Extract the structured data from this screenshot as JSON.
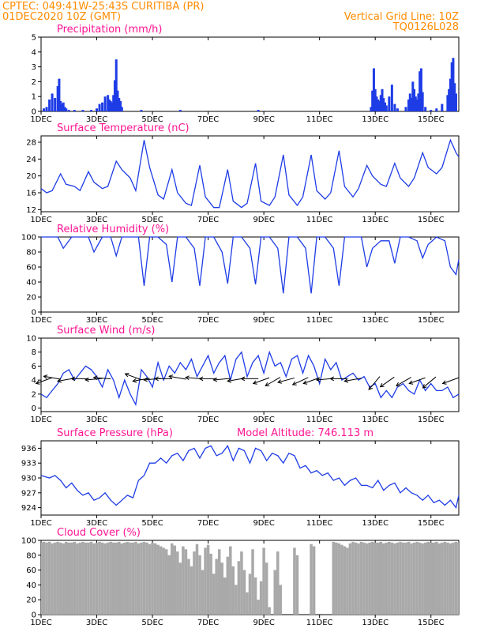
{
  "header": {
    "line1": "CPTEC:   049:41W-25:43S   CURITIBA (PR)",
    "line2": "01DEC2020 10Z (GMT)",
    "grid_note": "Vertical Grid Line: 10Z",
    "model_code": "TQ0126L028"
  },
  "x_ticks": [
    "1DEC",
    "3DEC",
    "5DEC",
    "7DEC",
    "9DEC",
    "11DEC",
    "13DEC",
    "15DEC"
  ],
  "colors": {
    "header": "#ff8c00",
    "panel_title": "#ff1493",
    "series": "#1e3ce6",
    "cloud": "#a9a9a9"
  },
  "chart_data": [
    {
      "type": "bar",
      "title": "Precipitation (mm/h)",
      "ylim": [
        0,
        5
      ],
      "yticks": [
        "0",
        "1",
        "2",
        "3",
        "4",
        "5"
      ],
      "x_days": [
        1.1,
        1.2,
        1.3,
        1.4,
        1.5,
        1.6,
        1.65,
        1.7,
        1.75,
        1.8,
        1.85,
        1.9,
        2.0,
        2.2,
        2.5,
        2.8,
        3.0,
        3.1,
        3.2,
        3.3,
        3.4,
        3.45,
        3.5,
        3.55,
        3.6,
        3.65,
        3.7,
        3.75,
        3.8,
        3.85,
        3.9,
        4.6,
        6.0,
        8.8,
        12.85,
        12.9,
        12.95,
        13.0,
        13.05,
        13.1,
        13.15,
        13.2,
        13.25,
        13.3,
        13.35,
        13.4,
        13.5,
        13.6,
        13.7,
        13.8,
        14.1,
        14.2,
        14.25,
        14.3,
        14.35,
        14.4,
        14.45,
        14.5,
        14.55,
        14.6,
        14.65,
        14.7,
        14.8,
        15.0,
        15.2,
        15.4,
        15.6,
        15.65,
        15.7,
        15.75,
        15.8,
        15.85,
        15.9
      ],
      "values": [
        0.2,
        0.3,
        0.8,
        1.2,
        0.9,
        1.7,
        2.2,
        0.7,
        0.5,
        0.6,
        0.3,
        0.2,
        0.1,
        0.1,
        0.1,
        0.1,
        0.2,
        0.5,
        0.6,
        1.0,
        1.1,
        0.8,
        0.7,
        0.6,
        1.1,
        2.1,
        3.5,
        1.4,
        0.9,
        0.7,
        0.3,
        0.1,
        0.1,
        0.1,
        0.3,
        1.4,
        2.9,
        1.5,
        1.0,
        0.8,
        0.7,
        1.1,
        1.5,
        0.9,
        0.6,
        0.4,
        1.0,
        1.8,
        0.5,
        0.2,
        0.3,
        0.8,
        1.2,
        0.9,
        2.0,
        1.5,
        1.0,
        0.8,
        1.2,
        2.7,
        2.9,
        1.3,
        0.3,
        0.1,
        0.2,
        0.5,
        1.1,
        1.5,
        2.2,
        3.3,
        3.6,
        1.9,
        1.2
      ]
    },
    {
      "type": "line",
      "title": "Surface Temperature (nC)",
      "ylim": [
        11.5,
        29.5
      ],
      "yticks": [
        "12",
        "16",
        "20",
        "24",
        "28"
      ],
      "x_days": [
        1.0,
        1.2,
        1.4,
        1.7,
        1.9,
        2.2,
        2.4,
        2.7,
        2.9,
        3.2,
        3.4,
        3.7,
        3.9,
        4.2,
        4.4,
        4.7,
        4.9,
        5.2,
        5.4,
        5.7,
        5.9,
        6.2,
        6.4,
        6.7,
        6.9,
        7.2,
        7.4,
        7.7,
        7.9,
        8.2,
        8.4,
        8.7,
        8.9,
        9.2,
        9.4,
        9.7,
        9.9,
        10.2,
        10.4,
        10.7,
        10.9,
        11.2,
        11.4,
        11.7,
        11.9,
        12.2,
        12.4,
        12.7,
        12.9,
        13.2,
        13.4,
        13.7,
        13.9,
        14.2,
        14.4,
        14.7,
        14.9,
        15.2,
        15.4,
        15.7,
        15.9,
        16.0
      ],
      "values": [
        17.0,
        16.0,
        16.5,
        20.5,
        18.0,
        17.5,
        16.5,
        21.0,
        18.5,
        17.0,
        17.5,
        23.5,
        21.5,
        19.5,
        16.5,
        28.5,
        22.0,
        15.5,
        14.5,
        21.5,
        16.0,
        13.5,
        13.0,
        22.5,
        15.0,
        12.5,
        12.5,
        21.5,
        14.0,
        12.5,
        13.5,
        23.0,
        14.0,
        13.0,
        15.0,
        25.0,
        15.5,
        13.0,
        15.0,
        25.0,
        16.5,
        14.5,
        16.0,
        26.0,
        17.5,
        15.0,
        17.0,
        22.5,
        20.0,
        18.0,
        17.5,
        23.0,
        19.5,
        17.5,
        19.5,
        25.5,
        22.0,
        20.5,
        22.0,
        28.5,
        25.5,
        24.5
      ]
    },
    {
      "type": "line",
      "title": "Relative Humidity (%)",
      "ylim": [
        0,
        100
      ],
      "yticks": [
        "0",
        "20",
        "40",
        "60",
        "80",
        "100"
      ],
      "x_days": [
        1.0,
        1.3,
        1.6,
        1.8,
        2.1,
        2.4,
        2.7,
        2.9,
        3.2,
        3.5,
        3.7,
        3.9,
        4.2,
        4.5,
        4.7,
        4.9,
        5.2,
        5.5,
        5.7,
        5.9,
        6.2,
        6.5,
        6.7,
        6.9,
        7.2,
        7.5,
        7.7,
        7.9,
        8.2,
        8.5,
        8.7,
        8.9,
        9.2,
        9.5,
        9.7,
        9.9,
        10.2,
        10.5,
        10.7,
        10.9,
        11.2,
        11.5,
        11.7,
        11.9,
        12.2,
        12.5,
        12.7,
        12.9,
        13.2,
        13.5,
        13.7,
        13.9,
        14.2,
        14.5,
        14.7,
        14.9,
        15.2,
        15.5,
        15.7,
        15.9,
        16.0
      ],
      "values": [
        100,
        100,
        100,
        85,
        100,
        100,
        100,
        80,
        100,
        100,
        75,
        100,
        100,
        100,
        35,
        100,
        100,
        90,
        40,
        100,
        100,
        85,
        35,
        100,
        100,
        80,
        38,
        100,
        100,
        85,
        37,
        100,
        100,
        85,
        25,
        100,
        100,
        85,
        25,
        100,
        100,
        85,
        35,
        100,
        100,
        100,
        60,
        85,
        95,
        95,
        65,
        100,
        100,
        95,
        72,
        90,
        100,
        95,
        60,
        50,
        70
      ]
    },
    {
      "type": "line",
      "title": "Surface Wind (m/s)",
      "ylim": [
        -0.5,
        10
      ],
      "yticks": [
        "0",
        "2",
        "4",
        "6",
        "8",
        "10"
      ],
      "x_days": [
        1.0,
        1.2,
        1.4,
        1.6,
        1.8,
        2.0,
        2.2,
        2.4,
        2.6,
        2.8,
        3.0,
        3.2,
        3.4,
        3.6,
        3.8,
        4.0,
        4.2,
        4.4,
        4.6,
        4.8,
        5.0,
        5.2,
        5.4,
        5.6,
        5.8,
        6.0,
        6.2,
        6.4,
        6.6,
        6.8,
        7.0,
        7.2,
        7.4,
        7.6,
        7.8,
        8.0,
        8.2,
        8.4,
        8.6,
        8.8,
        9.0,
        9.2,
        9.4,
        9.6,
        9.8,
        10.0,
        10.2,
        10.4,
        10.6,
        10.8,
        11.0,
        11.2,
        11.4,
        11.6,
        11.8,
        12.0,
        12.2,
        12.4,
        12.6,
        12.8,
        13.0,
        13.2,
        13.4,
        13.6,
        13.8,
        14.0,
        14.2,
        14.4,
        14.6,
        14.8,
        15.0,
        15.2,
        15.4,
        15.6,
        15.8,
        16.0
      ],
      "values": [
        2.0,
        1.5,
        2.5,
        3.5,
        5.0,
        5.5,
        4.0,
        5.0,
        6.0,
        5.5,
        4.5,
        3.0,
        5.5,
        4.0,
        1.5,
        4.0,
        2.0,
        0.5,
        5.5,
        4.5,
        3.0,
        6.5,
        4.0,
        6.0,
        5.0,
        6.5,
        5.5,
        7.0,
        4.5,
        6.0,
        7.5,
        5.0,
        6.5,
        7.5,
        4.0,
        7.0,
        8.0,
        4.5,
        6.5,
        7.5,
        5.0,
        8.0,
        6.0,
        6.5,
        4.5,
        7.0,
        7.5,
        5.0,
        7.5,
        6.0,
        3.5,
        7.0,
        5.5,
        6.5,
        4.0,
        4.5,
        5.0,
        4.0,
        4.5,
        3.0,
        3.5,
        1.5,
        2.5,
        1.5,
        3.0,
        3.5,
        2.5,
        2.0,
        4.0,
        2.5,
        3.5,
        2.5,
        2.5,
        3.0,
        1.5,
        2.0
      ],
      "wind_arrow_days": [
        1.3,
        1.6,
        2.1,
        2.6,
        3.1,
        3.4,
        4.5,
        4.8,
        5.2,
        5.6,
        6.1,
        6.7,
        7.2,
        7.7,
        8.2,
        8.7,
        9.1,
        9.5,
        10.0,
        10.5,
        10.9,
        11.4,
        11.9,
        12.4,
        13.1,
        13.6,
        14.2,
        14.7,
        15.1,
        15.9
      ],
      "wind_arrow_dir_deg": [
        200,
        170,
        190,
        180,
        185,
        175,
        160,
        190,
        185,
        180,
        170,
        175,
        180,
        185,
        190,
        180,
        200,
        210,
        195,
        205,
        200,
        185,
        180,
        190,
        230,
        215,
        210,
        200,
        220,
        200
      ]
    },
    {
      "type": "line",
      "title": "Surface Pressure (hPa)",
      "annotation": "Model Altitude: 746.113  m",
      "ylim": [
        922.5,
        937.5
      ],
      "yticks": [
        "924",
        "927",
        "930",
        "933",
        "936"
      ],
      "x_days": [
        1.0,
        1.3,
        1.5,
        1.7,
        1.9,
        2.1,
        2.3,
        2.5,
        2.7,
        2.9,
        3.1,
        3.3,
        3.5,
        3.7,
        3.9,
        4.1,
        4.3,
        4.5,
        4.7,
        4.9,
        5.1,
        5.3,
        5.5,
        5.7,
        5.9,
        6.1,
        6.3,
        6.5,
        6.7,
        6.9,
        7.1,
        7.3,
        7.5,
        7.7,
        7.9,
        8.1,
        8.3,
        8.5,
        8.7,
        8.9,
        9.1,
        9.3,
        9.5,
        9.7,
        9.9,
        10.1,
        10.3,
        10.5,
        10.7,
        10.9,
        11.1,
        11.3,
        11.5,
        11.7,
        11.9,
        12.1,
        12.3,
        12.5,
        12.7,
        12.9,
        13.1,
        13.3,
        13.5,
        13.7,
        13.9,
        14.1,
        14.3,
        14.5,
        14.7,
        14.9,
        15.1,
        15.3,
        15.5,
        15.7,
        15.9,
        16.0
      ],
      "values": [
        930.5,
        930.0,
        930.5,
        929.5,
        928.0,
        929.0,
        927.5,
        926.5,
        927.0,
        925.5,
        926.0,
        927.0,
        925.5,
        924.5,
        925.5,
        926.5,
        926.0,
        929.5,
        930.5,
        933.0,
        933.0,
        934.0,
        933.0,
        934.5,
        935.0,
        933.5,
        935.5,
        936.0,
        934.0,
        936.0,
        936.5,
        934.5,
        935.0,
        936.5,
        933.5,
        936.0,
        935.5,
        933.0,
        936.0,
        935.5,
        933.5,
        935.0,
        934.5,
        933.0,
        935.0,
        934.5,
        932.0,
        932.5,
        931.0,
        931.5,
        930.5,
        931.0,
        929.5,
        930.0,
        928.5,
        929.5,
        930.0,
        928.5,
        928.5,
        928.0,
        929.5,
        927.5,
        928.5,
        929.0,
        927.0,
        928.0,
        927.0,
        926.5,
        925.5,
        926.5,
        925.0,
        925.5,
        924.5,
        925.5,
        924.0,
        926.5
      ]
    },
    {
      "type": "area",
      "title": "Cloud Cover (%)",
      "ylim": [
        0,
        100
      ],
      "yticks": [
        "0",
        "20",
        "40",
        "60",
        "80",
        "100"
      ],
      "x_days": [
        1.0,
        1.1,
        1.2,
        1.3,
        1.4,
        1.5,
        1.6,
        1.7,
        1.8,
        1.9,
        2.0,
        2.1,
        2.2,
        2.3,
        2.4,
        2.5,
        2.6,
        2.7,
        2.8,
        2.9,
        3.0,
        3.1,
        3.2,
        3.3,
        3.4,
        3.5,
        3.6,
        3.7,
        3.8,
        3.9,
        4.0,
        4.1,
        4.2,
        4.3,
        4.4,
        4.5,
        4.6,
        4.7,
        4.8,
        4.9,
        5.0,
        5.1,
        5.2,
        5.3,
        5.4,
        5.5,
        5.6,
        5.7,
        5.8,
        5.9,
        6.0,
        6.1,
        6.2,
        6.3,
        6.4,
        6.5,
        6.6,
        6.7,
        6.8,
        6.9,
        7.0,
        7.1,
        7.2,
        7.3,
        7.4,
        7.5,
        7.6,
        7.7,
        7.8,
        7.9,
        8.0,
        8.1,
        8.2,
        8.3,
        8.4,
        8.5,
        8.6,
        8.7,
        8.8,
        8.9,
        9.0,
        9.1,
        9.2,
        9.3,
        9.4,
        9.5,
        9.6,
        9.7,
        9.8,
        9.9,
        10.0,
        10.1,
        10.2,
        10.3,
        10.4,
        10.5,
        10.6,
        10.7,
        10.8,
        10.9,
        11.0,
        11.1,
        11.2,
        11.3,
        11.4,
        11.5,
        11.6,
        11.7,
        11.8,
        11.9,
        12.0,
        12.1,
        12.2,
        12.3,
        12.4,
        12.5,
        12.6,
        12.7,
        12.8,
        12.9,
        13.0,
        13.1,
        13.2,
        13.3,
        13.4,
        13.5,
        13.6,
        13.7,
        13.8,
        13.9,
        14.0,
        14.1,
        14.2,
        14.3,
        14.4,
        14.5,
        14.6,
        14.7,
        14.8,
        14.9,
        15.0,
        15.1,
        15.2,
        15.3,
        15.4,
        15.5,
        15.6,
        15.7,
        15.8,
        15.9,
        16.0
      ],
      "values": [
        97,
        98,
        97,
        98,
        96,
        97,
        98,
        97,
        96,
        98,
        97,
        97,
        98,
        96,
        97,
        98,
        97,
        97,
        98,
        96,
        97,
        98,
        97,
        96,
        97,
        98,
        97,
        97,
        98,
        96,
        97,
        98,
        97,
        97,
        98,
        96,
        97,
        98,
        97,
        95,
        97,
        96,
        94,
        92,
        90,
        88,
        80,
        96,
        93,
        85,
        70,
        92,
        88,
        75,
        65,
        85,
        95,
        80,
        60,
        90,
        94,
        82,
        55,
        75,
        88,
        70,
        50,
        78,
        92,
        65,
        40,
        72,
        85,
        60,
        30,
        55,
        88,
        50,
        20,
        45,
        90,
        70,
        10,
        0,
        60,
        85,
        40,
        0,
        0,
        0,
        0,
        90,
        80,
        0,
        0,
        0,
        0,
        95,
        92,
        0,
        0,
        0,
        0,
        0,
        0,
        98,
        97,
        96,
        94,
        92,
        90,
        96,
        98,
        97,
        96,
        98,
        97,
        96,
        97,
        98,
        97,
        97,
        98,
        96,
        97,
        98,
        97,
        96,
        97,
        98,
        97,
        97,
        98,
        96,
        97,
        98,
        97,
        96,
        97,
        98,
        97,
        97,
        98,
        96,
        97,
        98,
        97,
        96,
        97,
        98,
        97
      ]
    }
  ]
}
